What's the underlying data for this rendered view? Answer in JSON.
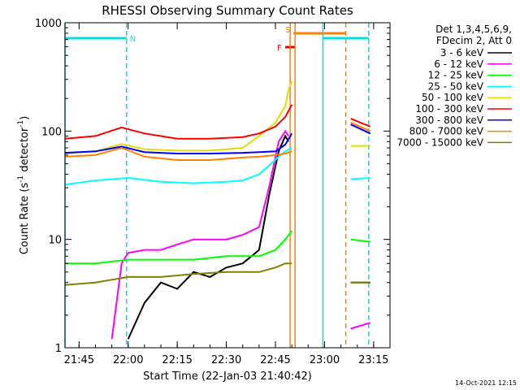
{
  "chart_data": {
    "type": "line",
    "title": "RHESSI Observing Summary Count Rates",
    "xlabel": "Start Time (22-Jan-03 21:40:42)",
    "ylabel_main": "Count Rate (s",
    "ylabel_sup1": "-1",
    "ylabel_mid": " detector",
    "ylabel_sup2": "-1",
    "ylabel_end": ")",
    "y_scale": "log",
    "ylim": [
      1,
      1000
    ],
    "xlim": [
      "21:40:42",
      "23:20:00"
    ],
    "x_ticks": [
      "21:45",
      "22:00",
      "22:15",
      "22:30",
      "22:45",
      "23:00",
      "23:15"
    ],
    "y_ticks": [
      "1",
      "10",
      "100",
      "1000"
    ],
    "legend_header": [
      "Det 1,3,4,5,6,9,",
      "FDecim 2, Att 0"
    ],
    "legend_position": "right, outside plot",
    "footer_timestamp": "14-Oct-2021 12:15",
    "flags": [
      {
        "label": "N",
        "color": "#00e0e0",
        "start": "21:40:42",
        "end": "21:59:30"
      },
      {
        "label": "F",
        "color": "#ee0000",
        "start": "22:48:00",
        "end": "22:51:00"
      },
      {
        "label": "S",
        "color": "#ff8000",
        "start": "22:50:30",
        "end": "23:06:30"
      }
    ],
    "night_flag": {
      "color": "#00e0e0",
      "start": "22:59:30",
      "end": "23:13:30"
    },
    "vertical_markers": [
      {
        "time": "21:40:42",
        "color": "#00e0e0",
        "style": "solid"
      },
      {
        "time": "21:59:30",
        "color": "#00e0e0",
        "style": "dashed"
      },
      {
        "time": "22:49:30",
        "color": "#ff8000",
        "style": "solid"
      },
      {
        "time": "22:51:00",
        "color": "#ff8000",
        "style": "solid"
      },
      {
        "time": "22:59:30",
        "color": "#00e0e0",
        "style": "solid"
      },
      {
        "time": "23:06:30",
        "color": "#ff8000",
        "style": "dashed"
      },
      {
        "time": "23:13:30",
        "color": "#00e0e0",
        "style": "dashed"
      }
    ],
    "series": [
      {
        "name": "3 - 6 keV",
        "color": "#000000",
        "x": [
          "22:00",
          "22:05",
          "22:10",
          "22:15",
          "22:20",
          "22:25",
          "22:30",
          "22:35",
          "22:40",
          "22:43",
          "22:46",
          "22:48",
          "22:49"
        ],
        "y": [
          1.2,
          2.6,
          4,
          3.5,
          5,
          4.5,
          5.5,
          6,
          8,
          25,
          65,
          90,
          80
        ]
      },
      {
        "name": "6 - 12 keV",
        "color": "#ff00ff",
        "x": [
          "21:55",
          "21:58",
          "22:00",
          "22:05",
          "22:10",
          "22:15",
          "22:20",
          "22:25",
          "22:30",
          "22:35",
          "22:40",
          "22:43",
          "22:46",
          "22:48",
          "22:49"
        ],
        "y": [
          1.2,
          6,
          7.5,
          8,
          8,
          9,
          10,
          10,
          10,
          11,
          13,
          30,
          80,
          100,
          90
        ]
      },
      {
        "name": "12 - 25 keV",
        "color": "#00ff00",
        "x": [
          "21:40:42",
          "21:50",
          "22:00",
          "22:10",
          "22:20",
          "22:30",
          "22:40",
          "22:45",
          "22:48",
          "22:50"
        ],
        "y": [
          6,
          6,
          6.5,
          6.5,
          6.5,
          7,
          7,
          8,
          10,
          12
        ]
      },
      {
        "name": "25 - 50 keV",
        "color": "#00ffff",
        "x": [
          "21:40:42",
          "21:50",
          "22:00",
          "22:10",
          "22:20",
          "22:30",
          "22:35",
          "22:40",
          "22:43",
          "22:46",
          "22:48",
          "22:50"
        ],
        "y": [
          32,
          35,
          37,
          34,
          33,
          34,
          35,
          40,
          48,
          58,
          65,
          70
        ]
      },
      {
        "name": "50 - 100 keV",
        "color": "#e0e000",
        "x": [
          "21:40:42",
          "21:50",
          "21:58",
          "22:05",
          "22:15",
          "22:25",
          "22:35",
          "22:40",
          "22:45",
          "22:48",
          "22:49",
          "22:50"
        ],
        "y": [
          62,
          65,
          76,
          68,
          66,
          66,
          70,
          90,
          120,
          170,
          240,
          290
        ]
      },
      {
        "name": "100 - 300 keV",
        "color": "#ff0000",
        "x": [
          "21:40:42",
          "21:50",
          "21:58",
          "22:05",
          "22:15",
          "22:25",
          "22:35",
          "22:40",
          "22:45",
          "22:48",
          "22:50"
        ],
        "y": [
          85,
          90,
          108,
          95,
          85,
          85,
          88,
          95,
          110,
          135,
          175
        ]
      },
      {
        "name": "300 - 800 keV",
        "color": "#0000ff",
        "x": [
          "21:40:42",
          "21:50",
          "21:58",
          "22:05",
          "22:15",
          "22:25",
          "22:35",
          "22:40",
          "22:45",
          "22:48",
          "22:50"
        ],
        "y": [
          63,
          65,
          72,
          64,
          62,
          62,
          63,
          64,
          65,
          75,
          95
        ]
      },
      {
        "name": "800 - 7000 keV",
        "color": "#ff8000",
        "x": [
          "21:40:42",
          "21:50",
          "21:58",
          "22:05",
          "22:15",
          "22:25",
          "22:35",
          "22:40",
          "22:45",
          "22:48",
          "22:50"
        ],
        "y": [
          58,
          60,
          70,
          58,
          54,
          54,
          57,
          58,
          60,
          62,
          65
        ]
      },
      {
        "name": "7000 - 15000 keV",
        "color": "#808000",
        "x": [
          "21:40:42",
          "21:50",
          "22:00",
          "22:10",
          "22:20",
          "22:30",
          "22:40",
          "22:45",
          "22:48",
          "22:50"
        ],
        "y": [
          3.8,
          4,
          4.5,
          4.5,
          4.8,
          5,
          5,
          5.5,
          6,
          6
        ]
      }
    ],
    "post_gap_series": [
      {
        "name": "3 - 6 keV",
        "color": "#000000",
        "x": [
          "23:08",
          "23:14"
        ],
        "y": [
          4,
          4
        ]
      },
      {
        "name": "6 - 12 keV",
        "color": "#ff00ff",
        "x": [
          "23:08",
          "23:14"
        ],
        "y": [
          1.5,
          1.7
        ]
      },
      {
        "name": "12 - 25 keV",
        "color": "#00ff00",
        "x": [
          "23:08",
          "23:14"
        ],
        "y": [
          10,
          9.5
        ]
      },
      {
        "name": "25 - 50 keV",
        "color": "#00ffff",
        "x": [
          "23:08",
          "23:14"
        ],
        "y": [
          36,
          37
        ]
      },
      {
        "name": "50 - 100 keV",
        "color": "#e0e000",
        "x": [
          "23:08",
          "23:14"
        ],
        "y": [
          73,
          73
        ]
      },
      {
        "name": "100 - 300 keV",
        "color": "#ff0000",
        "x": [
          "23:08",
          "23:14"
        ],
        "y": [
          130,
          110
        ]
      },
      {
        "name": "300 - 800 keV",
        "color": "#0000ff",
        "x": [
          "23:08",
          "23:14"
        ],
        "y": [
          115,
          95
        ]
      },
      {
        "name": "800 - 7000 keV",
        "color": "#ff8000",
        "x": [
          "23:08",
          "23:14"
        ],
        "y": [
          120,
          100
        ]
      },
      {
        "name": "7000 - 15000 keV",
        "color": "#808000",
        "x": [
          "23:08",
          "23:14"
        ],
        "y": [
          4,
          4
        ]
      }
    ]
  }
}
